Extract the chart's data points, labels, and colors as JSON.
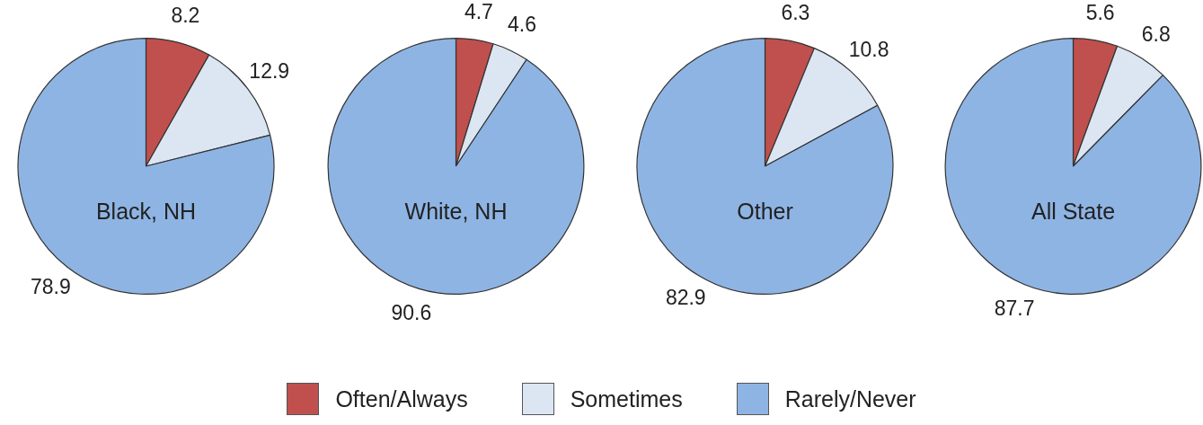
{
  "chart_data": [
    {
      "type": "pie",
      "title": "Black, NH",
      "categories": [
        "Often/Always",
        "Sometimes",
        "Rarely/Never"
      ],
      "values": [
        8.2,
        12.9,
        78.9
      ],
      "colors": [
        "#c0504d",
        "#dce6f2",
        "#8eb4e3"
      ],
      "data_labels": true,
      "legend": "bottom"
    },
    {
      "type": "pie",
      "title": "White, NH",
      "categories": [
        null,
        null,
        null
      ],
      "values": [
        4.7,
        4.6,
        90.6
      ],
      "colors": [
        "#c0504d",
        "#dce6f2",
        "#8eb4e3"
      ],
      "data_labels": true
    },
    {
      "type": "pie",
      "title": "Other",
      "categories": [
        null,
        null,
        null
      ],
      "values": [
        6.3,
        10.8,
        82.9
      ],
      "colors": [
        "#c0504d",
        "#dce6f2",
        "#8eb4e3"
      ],
      "data_labels": true
    },
    {
      "type": "pie",
      "title": "All State",
      "categories": [
        null,
        null,
        null
      ],
      "values": [
        5.6,
        6.8,
        87.7
      ],
      "colors": [
        "#c0504d",
        "#dce6f2",
        "#8eb4e3"
      ],
      "data_labels": true
    }
  ]
}
